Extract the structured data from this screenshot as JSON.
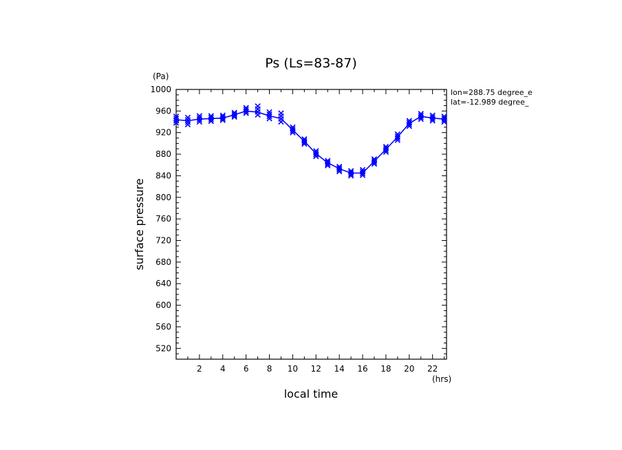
{
  "chart_data": {
    "type": "line",
    "title": "Ps (Ls=83-87)",
    "xlabel": "local time",
    "ylabel": "surface pressure",
    "x_unit": "(hrs)",
    "y_unit": "(Pa)",
    "xlim": [
      0,
      23.2
    ],
    "ylim": [
      500,
      1000
    ],
    "x_ticks": [
      2,
      4,
      6,
      8,
      10,
      12,
      14,
      16,
      18,
      20,
      22
    ],
    "y_ticks": [
      520,
      560,
      600,
      640,
      680,
      720,
      760,
      800,
      840,
      880,
      920,
      960,
      1000
    ],
    "annotations": [
      "lon=288.75 degree_e",
      "lat=-12.989 degree_"
    ],
    "series": [
      {
        "name": "surface pressure",
        "color": "#0000ff",
        "x": [
          0,
          1,
          2,
          3,
          4,
          5,
          6,
          7,
          8,
          9,
          10,
          11,
          12,
          13,
          14,
          15,
          16,
          17,
          18,
          19,
          20,
          21,
          22,
          23
        ],
        "y": [
          944,
          942,
          945,
          946,
          947,
          953,
          960,
          958,
          951,
          946,
          925,
          904,
          881,
          864,
          853,
          845,
          845,
          867,
          889,
          912,
          937,
          950,
          947,
          945
        ],
        "spread": [
          [
            938,
            950
          ],
          [
            935,
            948
          ],
          [
            940,
            951
          ],
          [
            941,
            951
          ],
          [
            943,
            952
          ],
          [
            949,
            957
          ],
          [
            956,
            966
          ],
          [
            953,
            969
          ],
          [
            946,
            958
          ],
          [
            940,
            956
          ],
          [
            920,
            930
          ],
          [
            899,
            908
          ],
          [
            876,
            886
          ],
          [
            859,
            868
          ],
          [
            848,
            857
          ],
          [
            840,
            849
          ],
          [
            841,
            851
          ],
          [
            862,
            871
          ],
          [
            884,
            894
          ],
          [
            906,
            917
          ],
          [
            932,
            942
          ],
          [
            945,
            955
          ],
          [
            942,
            952
          ],
          [
            940,
            950
          ]
        ]
      }
    ]
  }
}
